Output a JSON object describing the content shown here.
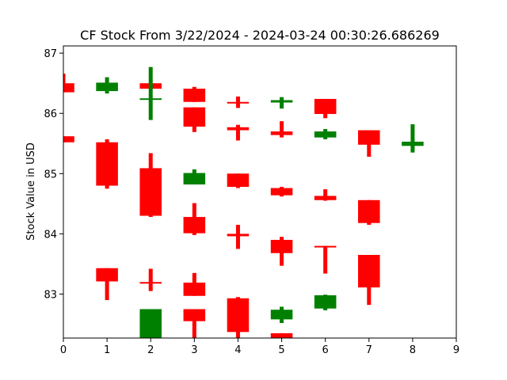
{
  "chart_data": {
    "type": "candlestick",
    "title": "CF Stock From 3/22/2024 - 2024-03-24 00:30:26.686269",
    "xlabel": "",
    "ylabel": "Stock Value in USD",
    "xlim": [
      0,
      9
    ],
    "ylim": [
      82.27,
      87.12
    ],
    "x_ticks": [
      0,
      1,
      2,
      3,
      4,
      5,
      6,
      7,
      8,
      9
    ],
    "y_ticks": [
      83,
      84,
      85,
      86,
      87
    ],
    "grid": false,
    "legend": "none",
    "colors": {
      "up": "#008000",
      "down": "#ff0000"
    },
    "candles": [
      {
        "x": 0,
        "open": 86.5,
        "high": 86.66,
        "low": 86.35,
        "close": 86.35
      },
      {
        "x": 0,
        "open": 85.62,
        "high": 85.62,
        "low": 85.52,
        "close": 85.52
      },
      {
        "x": 1,
        "open": 86.37,
        "high": 86.6,
        "low": 86.33,
        "close": 86.51
      },
      {
        "x": 1,
        "open": 85.52,
        "high": 85.57,
        "low": 84.75,
        "close": 84.8
      },
      {
        "x": 1,
        "open": 83.43,
        "high": 83.43,
        "low": 82.9,
        "close": 83.21
      },
      {
        "x": 2,
        "open": 86.5,
        "high": 86.5,
        "low": 86.41,
        "close": 86.41
      },
      {
        "x": 2,
        "open": 86.23,
        "high": 86.77,
        "low": 85.89,
        "close": 86.25
      },
      {
        "x": 2,
        "open": 85.09,
        "high": 85.34,
        "low": 84.28,
        "close": 84.3
      },
      {
        "x": 2,
        "open": 83.2,
        "high": 83.42,
        "low": 83.05,
        "close": 83.18
      },
      {
        "x": 2,
        "open": 82.2,
        "high": 82.75,
        "low": 82.2,
        "close": 82.75
      },
      {
        "x": 3,
        "open": 86.41,
        "high": 86.44,
        "low": 86.19,
        "close": 86.19
      },
      {
        "x": 3,
        "open": 86.1,
        "high": 86.1,
        "low": 85.69,
        "close": 85.78
      },
      {
        "x": 3,
        "open": 84.82,
        "high": 85.07,
        "low": 84.82,
        "close": 85.01
      },
      {
        "x": 3,
        "open": 84.28,
        "high": 84.51,
        "low": 83.98,
        "close": 84.01
      },
      {
        "x": 3,
        "open": 83.19,
        "high": 83.35,
        "low": 82.97,
        "close": 82.97
      },
      {
        "x": 3,
        "open": 82.75,
        "high": 82.75,
        "low": 82.27,
        "close": 82.55
      },
      {
        "x": 4,
        "open": 86.19,
        "high": 86.28,
        "low": 86.09,
        "close": 86.18
      },
      {
        "x": 4,
        "open": 85.77,
        "high": 85.81,
        "low": 85.55,
        "close": 85.72
      },
      {
        "x": 4,
        "open": 85.0,
        "high": 85.0,
        "low": 84.76,
        "close": 84.78
      },
      {
        "x": 4,
        "open": 84.0,
        "high": 84.15,
        "low": 83.75,
        "close": 83.96
      },
      {
        "x": 4,
        "open": 82.93,
        "high": 82.95,
        "low": 82.27,
        "close": 82.37
      },
      {
        "x": 5,
        "open": 86.18,
        "high": 86.27,
        "low": 86.08,
        "close": 86.22
      },
      {
        "x": 5,
        "open": 85.7,
        "high": 85.87,
        "low": 85.6,
        "close": 85.64
      },
      {
        "x": 5,
        "open": 84.76,
        "high": 84.78,
        "low": 84.62,
        "close": 84.64
      },
      {
        "x": 5,
        "open": 83.9,
        "high": 83.95,
        "low": 83.47,
        "close": 83.68
      },
      {
        "x": 5,
        "open": 82.58,
        "high": 82.79,
        "low": 82.52,
        "close": 82.74
      },
      {
        "x": 5,
        "open": 82.35,
        "high": 82.35,
        "low": 82.27,
        "close": 82.27
      },
      {
        "x": 6,
        "open": 86.24,
        "high": 86.24,
        "low": 85.92,
        "close": 85.99
      },
      {
        "x": 6,
        "open": 85.6,
        "high": 85.74,
        "low": 85.57,
        "close": 85.7
      },
      {
        "x": 6,
        "open": 84.63,
        "high": 84.74,
        "low": 84.55,
        "close": 84.56
      },
      {
        "x": 6,
        "open": 83.8,
        "high": 83.8,
        "low": 83.34,
        "close": 83.79
      },
      {
        "x": 6,
        "open": 82.76,
        "high": 82.99,
        "low": 82.73,
        "close": 82.98
      },
      {
        "x": 7,
        "open": 85.72,
        "high": 85.72,
        "low": 85.28,
        "close": 85.48
      },
      {
        "x": 7,
        "open": 84.56,
        "high": 84.56,
        "low": 84.15,
        "close": 84.18
      },
      {
        "x": 7,
        "open": 83.65,
        "high": 83.65,
        "low": 82.82,
        "close": 83.11
      },
      {
        "x": 8,
        "open": 85.46,
        "high": 85.82,
        "low": 85.35,
        "close": 85.53
      }
    ]
  }
}
